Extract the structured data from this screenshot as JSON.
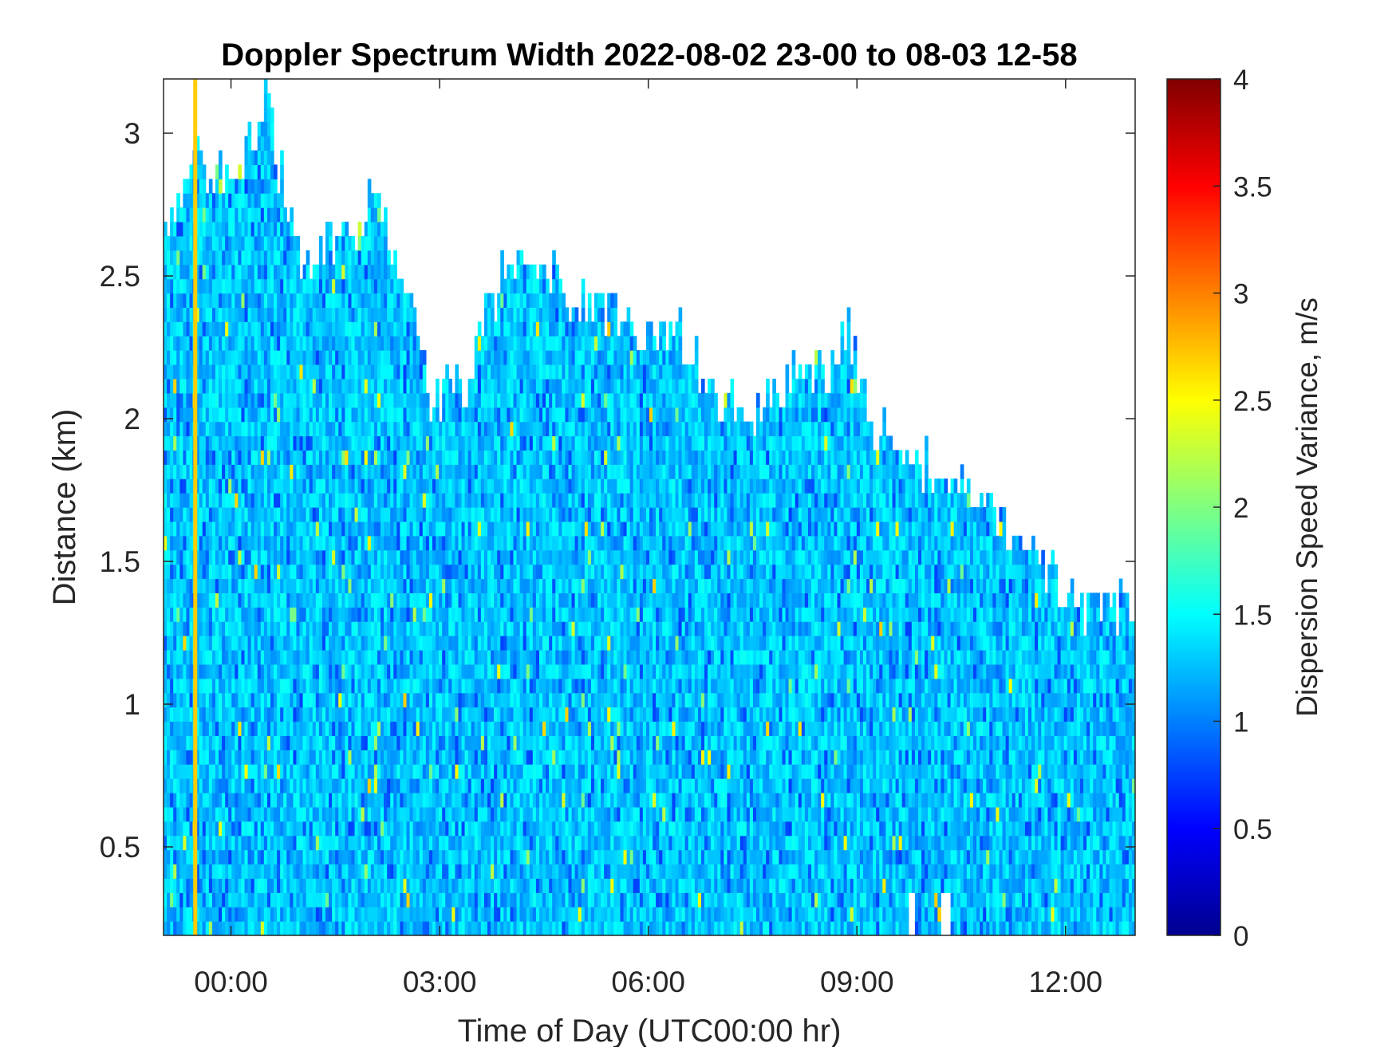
{
  "chart_data": {
    "type": "heatmap",
    "title": "Doppler Spectrum Width 2022-08-02 23-00 to 08-03 12-58",
    "xlabel": "Time of Day (UTC00:00 hr)",
    "ylabel": "Distance (km)",
    "colorbar_label": "Dispersion Speed Variance, m/s",
    "colormap": "jet",
    "x_ticks": [
      {
        "value": 0,
        "label": "00:00"
      },
      {
        "value": 3,
        "label": "03:00"
      },
      {
        "value": 6,
        "label": "06:00"
      },
      {
        "value": 9,
        "label": "09:00"
      },
      {
        "value": 12,
        "label": "12:00"
      }
    ],
    "xlim": [
      -0.97,
      13.0
    ],
    "y_ticks": [
      {
        "value": 0.5,
        "label": "0.5"
      },
      {
        "value": 1,
        "label": "1"
      },
      {
        "value": 1.5,
        "label": "1.5"
      },
      {
        "value": 2,
        "label": "2"
      },
      {
        "value": 2.5,
        "label": "2.5"
      },
      {
        "value": 3,
        "label": "3"
      }
    ],
    "ylim": [
      0.19,
      3.19
    ],
    "colorbar_ticks": [
      {
        "value": 0,
        "label": "0"
      },
      {
        "value": 0.5,
        "label": "0.5"
      },
      {
        "value": 1,
        "label": "1"
      },
      {
        "value": 1.5,
        "label": "1.5"
      },
      {
        "value": 2,
        "label": "2"
      },
      {
        "value": 2.5,
        "label": "2.5"
      },
      {
        "value": 3,
        "label": "3"
      },
      {
        "value": 3.5,
        "label": "3.5"
      },
      {
        "value": 4,
        "label": "4"
      }
    ],
    "clim": [
      0,
      4
    ],
    "typical_value": 1.3,
    "signal_top_km": [
      [
        -0.97,
        2.65
      ],
      [
        -0.5,
        2.9
      ],
      [
        0.0,
        2.8
      ],
      [
        0.5,
        3.1
      ],
      [
        1.0,
        2.55
      ],
      [
        1.5,
        2.6
      ],
      [
        2.0,
        2.75
      ],
      [
        2.5,
        2.5
      ],
      [
        2.9,
        2.05
      ],
      [
        3.4,
        2.15
      ],
      [
        3.9,
        2.5
      ],
      [
        4.4,
        2.55
      ],
      [
        5.0,
        2.4
      ],
      [
        5.6,
        2.35
      ],
      [
        6.0,
        2.25
      ],
      [
        6.4,
        2.35
      ],
      [
        6.9,
        2.1
      ],
      [
        7.4,
        2.0
      ],
      [
        8.0,
        2.15
      ],
      [
        8.6,
        2.2
      ],
      [
        8.9,
        2.3
      ],
      [
        9.2,
        2.0
      ],
      [
        9.7,
        1.9
      ],
      [
        10.2,
        1.8
      ],
      [
        10.7,
        1.75
      ],
      [
        11.2,
        1.6
      ],
      [
        11.6,
        1.5
      ],
      [
        12.0,
        1.35
      ],
      [
        12.5,
        1.3
      ],
      [
        13.0,
        1.38
      ]
    ],
    "vertical_streak": {
      "x": -0.52,
      "value": 2.7
    },
    "gaps": [
      {
        "x_start": 9.75,
        "x_end": 9.85,
        "y_start": 0.19,
        "y_end": 0.33
      },
      {
        "x_start": 10.2,
        "x_end": 10.35,
        "y_start": 0.19,
        "y_end": 0.35
      }
    ]
  }
}
